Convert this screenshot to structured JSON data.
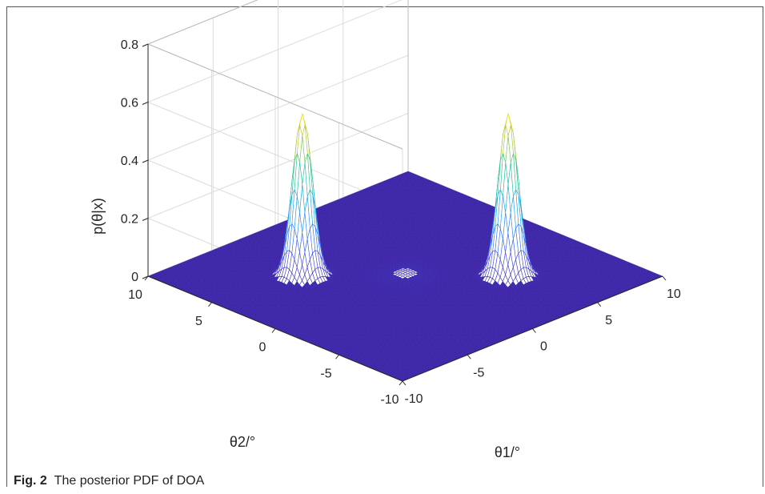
{
  "caption": {
    "label": "Fig. 2",
    "text": "The posterior PDF of DOA"
  },
  "chart_data": {
    "type": "surface",
    "xlabel": "θ1/°",
    "ylabel": "θ2/°",
    "zlabel": "p(θ|x)",
    "xlim": [
      -10,
      10
    ],
    "ylim": [
      -10,
      10
    ],
    "zlim": [
      0,
      0.8
    ],
    "xticks": [
      "-10",
      "-5",
      "0",
      "5",
      "10"
    ],
    "yticks": [
      "-10",
      "-5",
      "0",
      "5",
      "10"
    ],
    "zticks": [
      "0",
      "0.2",
      "0.4",
      "0.6",
      "0.8"
    ],
    "grid": true,
    "colormap": "parula",
    "colors": {
      "low": "#3e26a8",
      "mid": "#1fa8d9",
      "high": "#f9fb0e"
    },
    "peaks": [
      {
        "theta1": -4,
        "theta2": 4,
        "height": 0.56
      },
      {
        "theta1": 4,
        "theta2": -4,
        "height": 0.56
      }
    ]
  }
}
